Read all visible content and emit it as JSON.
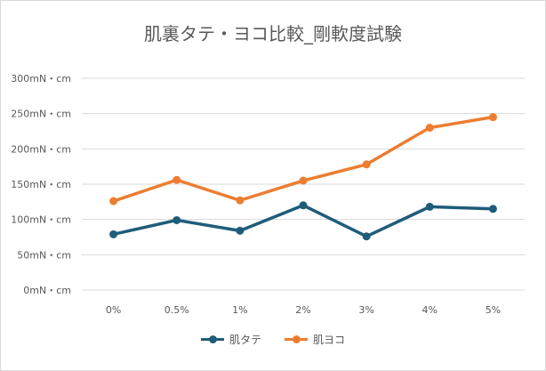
{
  "chart_data": {
    "type": "line",
    "title": "肌裏タテ・ヨコ比較_剛軟度試験",
    "categories": [
      "0%",
      "0.5%",
      "1%",
      "2%",
      "3%",
      "4%",
      "5%"
    ],
    "yticks": [
      "0mN・cm",
      "50mN・cm",
      "100mN・cm",
      "150mN・cm",
      "200mN・cm",
      "250mN・cm",
      "300mN・cm"
    ],
    "ylim": [
      0,
      300
    ],
    "grid": true,
    "legend": "bottom",
    "series": [
      {
        "name": "肌タテ",
        "color": "#1f5c7a",
        "values": [
          79,
          99,
          84,
          120,
          76,
          118,
          115
        ]
      },
      {
        "name": "肌ヨコ",
        "color": "#ed7d31",
        "values": [
          126,
          156,
          127,
          155,
          178,
          230,
          245
        ]
      }
    ]
  }
}
